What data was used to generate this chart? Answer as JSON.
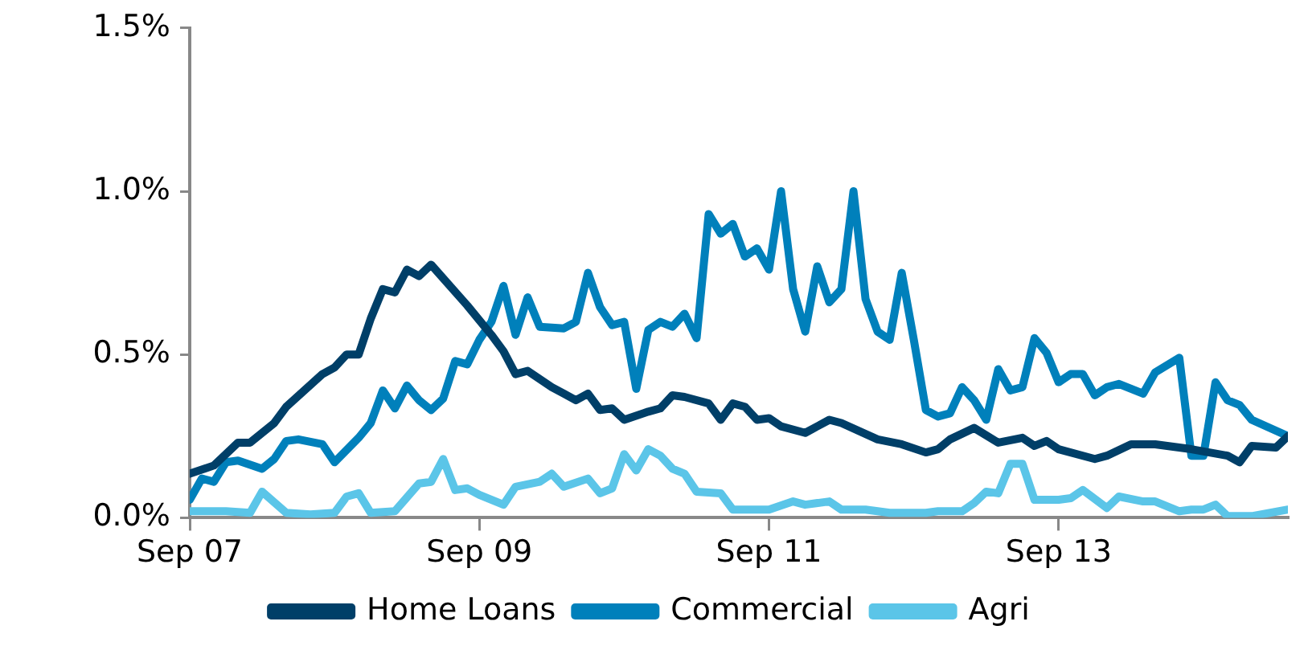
{
  "chart_data": {
    "type": "line",
    "xlim": [
      "2007-09",
      "2015-04"
    ],
    "ylim": [
      0,
      1.5
    ],
    "xticks": [
      {
        "value": "2007-09",
        "label": "Sep 07"
      },
      {
        "value": "2009-09",
        "label": "Sep 09"
      },
      {
        "value": "2011-09",
        "label": "Sep 11"
      },
      {
        "value": "2013-09",
        "label": "Sep 13"
      }
    ],
    "yticks": [
      {
        "value": 0,
        "label": "0.0%"
      },
      {
        "value": 0.5,
        "label": "0.5%"
      },
      {
        "value": 1,
        "label": "1.0%"
      },
      {
        "value": 1.5,
        "label": "1.5%"
      }
    ],
    "grid": false,
    "legend": "bottom",
    "marker": "none",
    "line_style": "solid",
    "series": [
      {
        "name": "Home Loans",
        "color": "#003f68",
        "x": [
          "2007-09",
          "2007-11",
          "2008-01",
          "2008-02",
          "2008-04",
          "2008-05",
          "2008-08",
          "2008-09",
          "2008-10",
          "2008-11",
          "2008-12",
          "2009-01",
          "2009-02",
          "2009-03",
          "2009-04",
          "2009-05",
          "2009-08",
          "2009-10",
          "2009-11",
          "2009-12",
          "2010-01",
          "2010-03",
          "2010-04",
          "2010-05",
          "2010-06",
          "2010-07",
          "2010-08",
          "2010-09",
          "2010-11",
          "2010-12",
          "2011-01",
          "2011-02",
          "2011-04",
          "2011-05",
          "2011-06",
          "2011-07",
          "2011-08",
          "2011-09",
          "2011-10",
          "2011-12",
          "2012-02",
          "2012-03",
          "2012-06",
          "2012-08",
          "2012-10",
          "2012-11",
          "2012-12",
          "2013-02",
          "2013-04",
          "2013-06",
          "2013-07",
          "2013-08",
          "2013-09",
          "2013-12",
          "2014-01",
          "2014-03",
          "2014-05",
          "2014-08",
          "2014-11",
          "2014-12",
          "2015-01",
          "2015-03",
          "2015-04"
        ],
        "values": [
          0.135,
          0.16,
          0.23,
          0.23,
          0.29,
          0.34,
          0.44,
          0.46,
          0.5,
          0.5,
          0.61,
          0.7,
          0.69,
          0.76,
          0.74,
          0.775,
          0.65,
          0.56,
          0.51,
          0.44,
          0.45,
          0.4,
          0.38,
          0.36,
          0.38,
          0.33,
          0.335,
          0.3,
          0.325,
          0.335,
          0.375,
          0.37,
          0.35,
          0.3,
          0.35,
          0.34,
          0.3,
          0.305,
          0.28,
          0.26,
          0.3,
          0.29,
          0.24,
          0.225,
          0.2,
          0.21,
          0.24,
          0.275,
          0.23,
          0.245,
          0.22,
          0.235,
          0.21,
          0.18,
          0.19,
          0.225,
          0.225,
          0.21,
          0.19,
          0.17,
          0.22,
          0.215,
          0.25
        ]
      },
      {
        "name": "Commercial",
        "color": "#0080bb",
        "x": [
          "2007-09",
          "2007-10",
          "2007-11",
          "2007-12",
          "2008-01",
          "2008-03",
          "2008-04",
          "2008-05",
          "2008-06",
          "2008-08",
          "2008-09",
          "2008-11",
          "2008-12",
          "2009-01",
          "2009-02",
          "2009-03",
          "2009-04",
          "2009-05",
          "2009-06",
          "2009-07",
          "2009-08",
          "2009-09",
          "2009-10",
          "2009-11",
          "2009-12",
          "2010-01",
          "2010-02",
          "2010-04",
          "2010-05",
          "2010-06",
          "2010-07",
          "2010-08",
          "2010-09",
          "2010-10",
          "2010-11",
          "2010-12",
          "2011-01",
          "2011-02",
          "2011-03",
          "2011-04",
          "2011-05",
          "2011-06",
          "2011-07",
          "2011-08",
          "2011-09",
          "2011-10",
          "2011-11",
          "2011-12",
          "2012-01",
          "2012-02",
          "2012-03",
          "2012-04",
          "2012-05",
          "2012-06",
          "2012-07",
          "2012-08",
          "2012-09",
          "2012-10",
          "2012-11",
          "2012-12",
          "2013-01",
          "2013-02",
          "2013-03",
          "2013-04",
          "2013-05",
          "2013-06",
          "2013-07",
          "2013-08",
          "2013-09",
          "2013-10",
          "2013-11",
          "2013-12",
          "2014-01",
          "2014-02",
          "2014-04",
          "2014-05",
          "2014-07",
          "2014-08",
          "2014-09",
          "2014-10",
          "2014-11",
          "2014-12",
          "2015-01",
          "2015-04"
        ],
        "values": [
          0.055,
          0.12,
          0.11,
          0.17,
          0.175,
          0.15,
          0.18,
          0.235,
          0.24,
          0.225,
          0.17,
          0.245,
          0.29,
          0.39,
          0.335,
          0.405,
          0.36,
          0.33,
          0.365,
          0.48,
          0.47,
          0.545,
          0.6,
          0.71,
          0.56,
          0.675,
          0.585,
          0.58,
          0.6,
          0.75,
          0.645,
          0.59,
          0.6,
          0.395,
          0.575,
          0.6,
          0.585,
          0.625,
          0.55,
          0.93,
          0.87,
          0.9,
          0.8,
          0.825,
          0.76,
          1.0,
          0.7,
          0.57,
          0.77,
          0.66,
          0.7,
          1.0,
          0.67,
          0.57,
          0.545,
          0.75,
          0.545,
          0.33,
          0.31,
          0.32,
          0.4,
          0.36,
          0.3,
          0.455,
          0.39,
          0.4,
          0.55,
          0.505,
          0.415,
          0.44,
          0.44,
          0.375,
          0.4,
          0.41,
          0.38,
          0.445,
          0.49,
          0.19,
          0.19,
          0.415,
          0.36,
          0.345,
          0.3,
          0.25
        ]
      },
      {
        "name": "Agri",
        "color": "#5bc5e8",
        "x": [
          "2007-09",
          "2007-12",
          "2008-02",
          "2008-03",
          "2008-05",
          "2008-07",
          "2008-09",
          "2008-10",
          "2008-11",
          "2008-12",
          "2009-02",
          "2009-04",
          "2009-05",
          "2009-06",
          "2009-07",
          "2009-08",
          "2009-09",
          "2009-11",
          "2009-12",
          "2010-02",
          "2010-03",
          "2010-04",
          "2010-06",
          "2010-07",
          "2010-08",
          "2010-09",
          "2010-10",
          "2010-11",
          "2010-12",
          "2011-01",
          "2011-02",
          "2011-03",
          "2011-05",
          "2011-06",
          "2011-09",
          "2011-11",
          "2011-12",
          "2012-02",
          "2012-03",
          "2012-05",
          "2012-07",
          "2012-10",
          "2012-11",
          "2013-01",
          "2013-02",
          "2013-03",
          "2013-04",
          "2013-05",
          "2013-06",
          "2013-07",
          "2013-09",
          "2013-10",
          "2013-11",
          "2014-01",
          "2014-02",
          "2014-04",
          "2014-05",
          "2014-07",
          "2014-08",
          "2014-09",
          "2014-10",
          "2014-11",
          "2015-01",
          "2015-04"
        ],
        "values": [
          0.02,
          0.02,
          0.015,
          0.08,
          0.015,
          0.01,
          0.015,
          0.065,
          0.075,
          0.015,
          0.02,
          0.105,
          0.11,
          0.18,
          0.085,
          0.09,
          0.07,
          0.04,
          0.095,
          0.11,
          0.135,
          0.095,
          0.12,
          0.075,
          0.09,
          0.195,
          0.145,
          0.21,
          0.19,
          0.15,
          0.135,
          0.08,
          0.075,
          0.025,
          0.025,
          0.05,
          0.04,
          0.05,
          0.025,
          0.025,
          0.015,
          0.015,
          0.02,
          0.02,
          0.045,
          0.08,
          0.075,
          0.165,
          0.165,
          0.055,
          0.055,
          0.06,
          0.085,
          0.03,
          0.065,
          0.05,
          0.05,
          0.02,
          0.025,
          0.025,
          0.04,
          0.005,
          0.005,
          0.025
        ]
      }
    ]
  }
}
